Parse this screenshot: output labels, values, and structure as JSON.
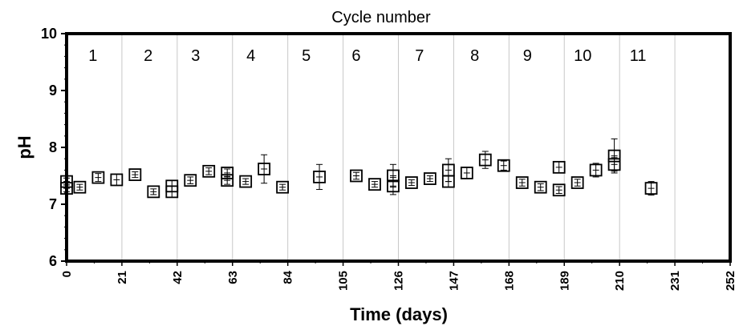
{
  "chart_data": {
    "type": "scatter",
    "title": "Cycle number",
    "xlabel": "Time (days)",
    "ylabel": "pH",
    "xlim": [
      0,
      252
    ],
    "ylim": [
      6,
      10
    ],
    "x_ticks": [
      "0",
      "21",
      "42",
      "63",
      "84",
      "105",
      "126",
      "147",
      "168",
      "189",
      "210",
      "231",
      "252"
    ],
    "y_ticks": [
      "6",
      "7",
      "8",
      "9",
      "10"
    ],
    "grid": "vertical",
    "cycle_labels": [
      {
        "label": "1",
        "x": 10
      },
      {
        "label": "2",
        "x": 31
      },
      {
        "label": "3",
        "x": 49
      },
      {
        "label": "4",
        "x": 70
      },
      {
        "label": "5",
        "x": 91
      },
      {
        "label": "6",
        "x": 110
      },
      {
        "label": "7",
        "x": 134
      },
      {
        "label": "8",
        "x": 155
      },
      {
        "label": "9",
        "x": 175
      },
      {
        "label": "10",
        "x": 196
      },
      {
        "label": "11",
        "x": 217
      }
    ],
    "points": [
      {
        "x": 0,
        "y": 7.4,
        "err": 0.06
      },
      {
        "x": 0,
        "y": 7.28,
        "err": 0.06
      },
      {
        "x": 5,
        "y": 7.3,
        "err": 0.05
      },
      {
        "x": 12,
        "y": 7.47,
        "err": 0.07
      },
      {
        "x": 19,
        "y": 7.43,
        "err": 0.1
      },
      {
        "x": 26,
        "y": 7.52,
        "err": 0.05
      },
      {
        "x": 33,
        "y": 7.22,
        "err": 0.05
      },
      {
        "x": 40,
        "y": 7.32,
        "err": 0.1
      },
      {
        "x": 40,
        "y": 7.22,
        "err": 0.1
      },
      {
        "x": 47,
        "y": 7.42,
        "err": 0.06
      },
      {
        "x": 54,
        "y": 7.58,
        "err": 0.06
      },
      {
        "x": 61,
        "y": 7.55,
        "err": 0.07
      },
      {
        "x": 61,
        "y": 7.42,
        "err": 0.07
      },
      {
        "x": 68,
        "y": 7.4,
        "err": 0.05
      },
      {
        "x": 75,
        "y": 7.62,
        "err": 0.25
      },
      {
        "x": 82,
        "y": 7.3,
        "err": 0.05
      },
      {
        "x": 96,
        "y": 7.48,
        "err": 0.22
      },
      {
        "x": 110,
        "y": 7.5,
        "err": 0.06
      },
      {
        "x": 117,
        "y": 7.35,
        "err": 0.05
      },
      {
        "x": 124,
        "y": 7.5,
        "err": 0.2
      },
      {
        "x": 124,
        "y": 7.32,
        "err": 0.15
      },
      {
        "x": 131,
        "y": 7.38,
        "err": 0.05
      },
      {
        "x": 138,
        "y": 7.45,
        "err": 0.05
      },
      {
        "x": 145,
        "y": 7.6,
        "err": 0.2
      },
      {
        "x": 145,
        "y": 7.4,
        "err": 0.1
      },
      {
        "x": 152,
        "y": 7.55,
        "err": 0.1
      },
      {
        "x": 159,
        "y": 7.78,
        "err": 0.15
      },
      {
        "x": 166,
        "y": 7.68,
        "err": 0.08
      },
      {
        "x": 173,
        "y": 7.38,
        "err": 0.06
      },
      {
        "x": 180,
        "y": 7.3,
        "err": 0.06
      },
      {
        "x": 187,
        "y": 7.65,
        "err": 0.1
      },
      {
        "x": 187,
        "y": 7.25,
        "err": 0.06
      },
      {
        "x": 194,
        "y": 7.38,
        "err": 0.06
      },
      {
        "x": 201,
        "y": 7.6,
        "err": 0.12
      },
      {
        "x": 208,
        "y": 7.85,
        "err": 0.3
      },
      {
        "x": 208,
        "y": 7.7,
        "err": 0.12
      },
      {
        "x": 222,
        "y": 7.28,
        "err": 0.12
      }
    ]
  }
}
